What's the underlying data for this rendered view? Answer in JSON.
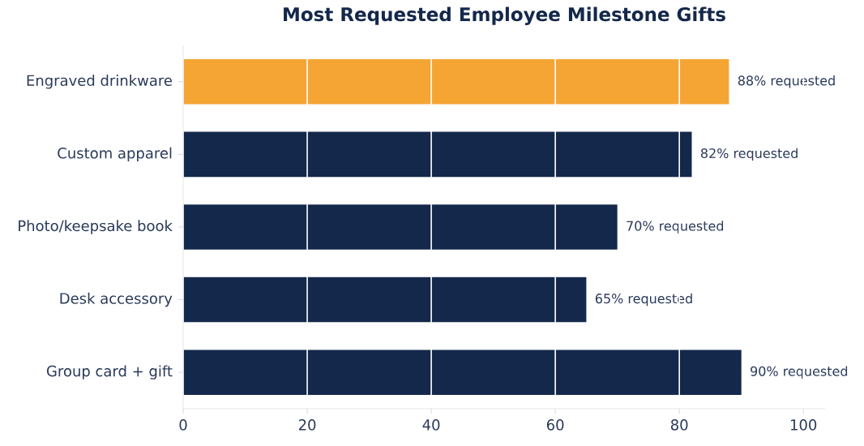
{
  "chart_data": {
    "type": "bar",
    "orientation": "horizontal",
    "title": "Most Requested Employee Milestone Gifts",
    "categories": [
      "Engraved drinkware",
      "Custom apparel",
      "Photo/keepsake book",
      "Desk accessory",
      "Group card + gift"
    ],
    "values": [
      88,
      82,
      70,
      65,
      90
    ],
    "colors": [
      "#f4a533",
      "#14284b",
      "#14284b",
      "#14284b",
      "#14284b"
    ],
    "value_labels": [
      "88% requested",
      "82% requested",
      "70% requested",
      "65% requested",
      "90% requested"
    ],
    "xlim": [
      0,
      103.5
    ],
    "xticks": [
      0,
      20,
      40,
      60,
      80,
      100
    ],
    "grid": "x"
  }
}
